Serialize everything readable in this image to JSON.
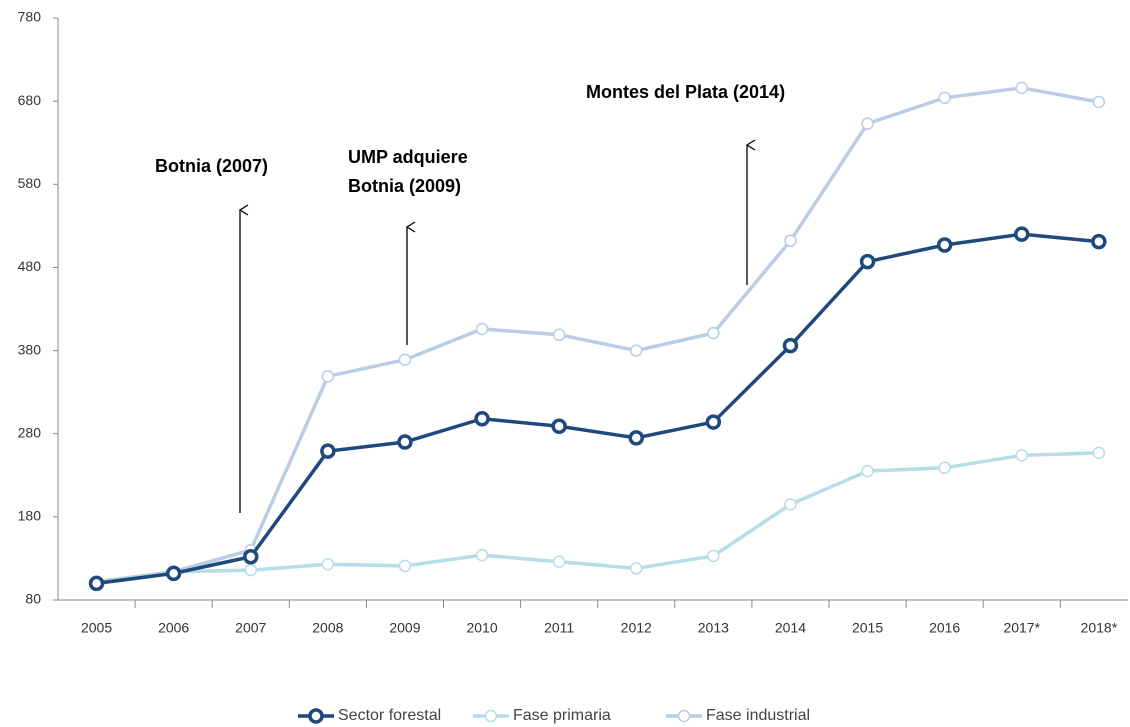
{
  "chart_data": {
    "type": "line",
    "categories": [
      "2005",
      "2006",
      "2007",
      "2008",
      "2009",
      "2010",
      "2011",
      "2012",
      "2013",
      "2014",
      "2015",
      "2016",
      "2017*",
      "2018*"
    ],
    "series": [
      {
        "name": "Sector forestal",
        "color": "#1f497d",
        "values": [
          100,
          112,
          132,
          259,
          270,
          298,
          289,
          275,
          294,
          386,
          487,
          507,
          520,
          511
        ]
      },
      {
        "name": "Fase primaria",
        "color": "#b7dde8",
        "values": [
          100,
          114,
          116,
          123,
          121,
          134,
          126,
          118,
          133,
          195,
          235,
          239,
          254,
          257
        ]
      },
      {
        "name": "Fase industrial",
        "color": "#b9cde5",
        "values": [
          102,
          114,
          140,
          349,
          369,
          406,
          399,
          380,
          401,
          512,
          653,
          684,
          696,
          679
        ]
      }
    ],
    "ylim": [
      80,
      780
    ],
    "yticks": [
      80,
      180,
      280,
      380,
      480,
      580,
      680,
      780
    ],
    "annotations": [
      {
        "lines": [
          "Botnia (2007)"
        ]
      },
      {
        "lines": [
          "UMP adquiere",
          "Botnia (2009)"
        ]
      },
      {
        "lines": [
          "Montes del Plata (2014)"
        ]
      }
    ],
    "legend": "bottom"
  }
}
